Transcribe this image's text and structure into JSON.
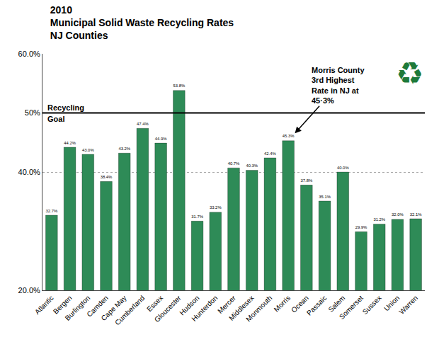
{
  "chart_data": {
    "type": "bar",
    "title": "2010\nMunicipal Solid Waste Recycling Rates\nNJ Counties",
    "categories": [
      "Atlantic",
      "Bergen",
      "Burlington",
      "Camden",
      "Cape May",
      "Cumberland",
      "Essex",
      "Gloucester",
      "Hudson",
      "Hunterdon",
      "Mercer",
      "Middlesex",
      "Monmouth",
      "Morris",
      "Ocean",
      "Passaic",
      "Salem",
      "Somerset",
      "Sussex",
      "Union",
      "Warren"
    ],
    "values": [
      32.7,
      44.2,
      43.0,
      38.4,
      43.2,
      47.4,
      44.9,
      53.8,
      31.7,
      33.2,
      40.7,
      40.3,
      42.4,
      45.3,
      37.8,
      35.1,
      40.0,
      29.9,
      31.2,
      32.0,
      32.1
    ],
    "value_labels": [
      "32.7%",
      "44.2%",
      "43.0%",
      "38.4%",
      "43.2%",
      "47.4%",
      "44.9%",
      "53.8%",
      "31.7%",
      "33.2%",
      "40.7%",
      "40.3%",
      "42.4%",
      "45.3%",
      "37.8%",
      "35.1%",
      "40.0%",
      "29.9%",
      "31.2%",
      "32.0%",
      "32.1%"
    ],
    "data_labels": true,
    "color": "#2e8b57",
    "ylim": [
      20.0,
      60.0
    ],
    "yticks": [
      {
        "value": 20.0,
        "label": "20.0%"
      },
      {
        "value": 40.0,
        "label": "40.0%"
      },
      {
        "value": 50.0,
        "label": "50%"
      },
      {
        "value": 60.0,
        "label": "60.0%"
      }
    ],
    "grid": true,
    "goal_line": {
      "value": 50.0,
      "labels": [
        "Recycling",
        "Goal"
      ]
    },
    "annotations": [
      {
        "text": "Morris County\n3rd Highest\nRate in NJ at\n45·3%",
        "category": "Morris"
      },
      {
        "text": "♻",
        "color": "#1e7a3a"
      }
    ]
  }
}
